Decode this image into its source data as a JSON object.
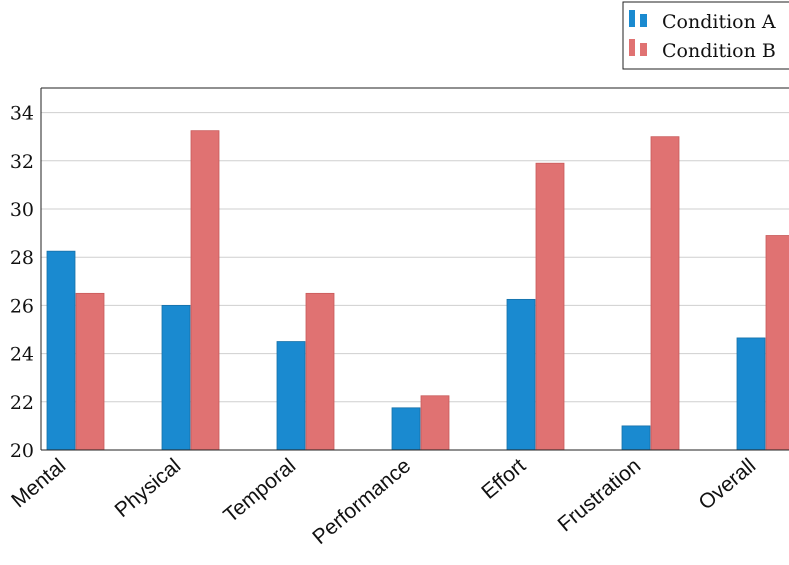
{
  "chart_data": {
    "type": "bar",
    "title": "",
    "xlabel": "",
    "ylabel": "",
    "categories": [
      "Mental",
      "Physical",
      "Temporal",
      "Performance",
      "Effort",
      "Frustration",
      "Overall"
    ],
    "series": [
      {
        "name": "Condition A",
        "color": "#1a8ad0",
        "values": [
          28.25,
          26.0,
          24.5,
          21.75,
          26.25,
          21.0,
          24.65
        ]
      },
      {
        "name": "Condition B",
        "color": "#e07272",
        "values": [
          26.5,
          33.25,
          26.5,
          22.25,
          31.9,
          33.0,
          28.9
        ]
      }
    ],
    "ylim": [
      20,
      35
    ],
    "yticks": [
      20,
      22,
      24,
      26,
      28,
      30,
      32,
      34
    ],
    "grid": true,
    "legend_position": "top-right"
  }
}
